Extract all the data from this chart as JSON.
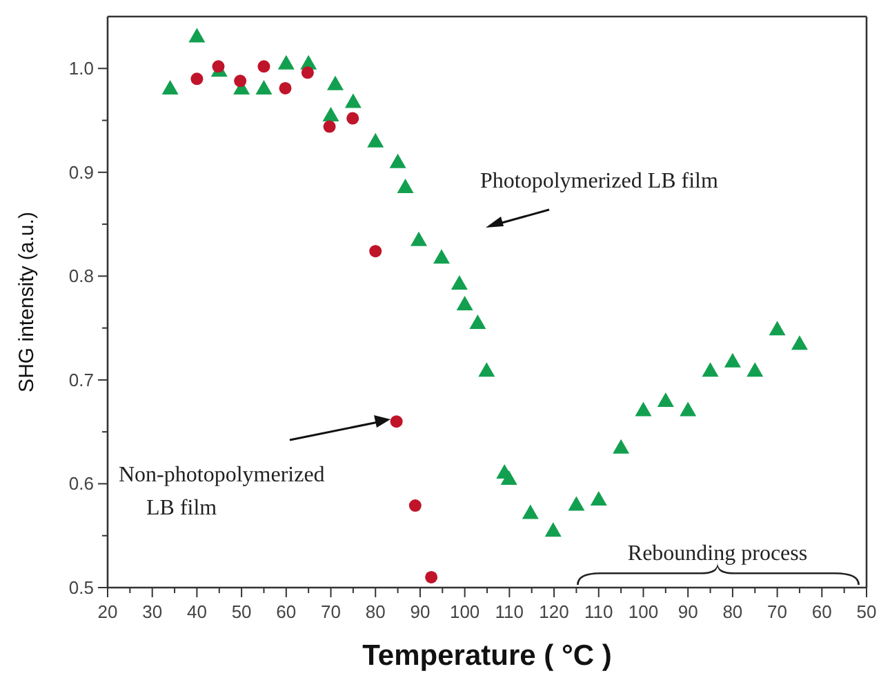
{
  "chart_data": [
    {
      "type": "scatter",
      "xlabel": "Temperature ( °C )",
      "ylabel": "SHG intensity (a.u.)",
      "xlim": [
        20,
        120
      ],
      "ylim": [
        0.5,
        1.05
      ],
      "xticks": [
        20,
        {
          "value": 25,
          "label": null
        },
        30,
        {
          "value": 35,
          "label": null
        },
        40,
        {
          "value": 45,
          "label": null
        },
        50,
        {
          "value": 55,
          "label": null
        },
        60,
        {
          "value": 65,
          "label": null
        },
        70,
        {
          "value": 75,
          "label": null
        },
        80,
        {
          "value": 85,
          "label": null
        },
        90,
        {
          "value": 95,
          "label": null
        },
        100,
        {
          "value": 105,
          "label": null
        },
        110,
        {
          "value": 115,
          "label": null
        },
        120
      ],
      "yticks": [
        0.5,
        {
          "value": 0.55,
          "label": null
        },
        0.6,
        {
          "value": 0.65,
          "label": null
        },
        0.7,
        {
          "value": 0.75,
          "label": null
        },
        0.8,
        {
          "value": 0.85,
          "label": null
        },
        0.9,
        {
          "value": 0.95,
          "label": null
        },
        {
          "value": 1.0,
          "label": "1.0"
        }
      ],
      "series": [
        {
          "color": "#12a050",
          "marker": "triangle",
          "x": [
            34,
            40,
            45,
            50,
            55,
            60,
            65,
            70,
            71,
            75,
            80,
            85,
            86.7,
            89.7,
            94.8,
            98.8,
            100,
            102.9,
            104.9,
            108.9,
            109.9,
            114.7,
            119.8
          ],
          "values": [
            0.981,
            1.031,
            0.998,
            0.981,
            0.981,
            1.005,
            1.005,
            0.955,
            0.985,
            0.968,
            0.93,
            0.91,
            0.886,
            0.835,
            0.818,
            0.793,
            0.773,
            0.755,
            0.709,
            0.611,
            0.605,
            0.572,
            0.555
          ]
        },
        {
          "color": "#c0142a",
          "marker": "circle",
          "x": [
            40,
            44.8,
            49.7,
            55,
            59.8,
            64.8,
            69.7,
            74.9,
            80,
            84.7,
            88.9,
            92.5
          ],
          "values": [
            0.99,
            1.002,
            0.988,
            1.002,
            0.981,
            0.996,
            0.944,
            0.952,
            0.824,
            0.66,
            0.579,
            0.51
          ]
        }
      ],
      "annotations": [
        "Photopolymerized LB film",
        "Non-photopolymerized\nLB film"
      ]
    },
    {
      "type": "scatter",
      "xlim": [
        120,
        50
      ],
      "ylim": [
        0.5,
        1.05
      ],
      "tick_labels": "x",
      "xticks": [
        {
          "value": 115,
          "label": null
        },
        110,
        {
          "value": 105,
          "label": null
        },
        100,
        {
          "value": 95,
          "label": null
        },
        90,
        {
          "value": 85,
          "label": null
        },
        80,
        {
          "value": 75,
          "label": null
        },
        70,
        {
          "value": 65,
          "label": null
        },
        60,
        {
          "value": 55,
          "label": null
        },
        50
      ],
      "series": [
        {
          "color": "#12a050",
          "marker": "triangle",
          "x": [
            115,
            110,
            105,
            100,
            95,
            90,
            85,
            80,
            75,
            70,
            65
          ],
          "values": [
            0.58,
            0.585,
            0.635,
            0.671,
            0.68,
            0.671,
            0.709,
            0.718,
            0.709,
            0.749,
            0.735
          ]
        }
      ],
      "annotations": [
        "Rebounding process"
      ]
    }
  ]
}
